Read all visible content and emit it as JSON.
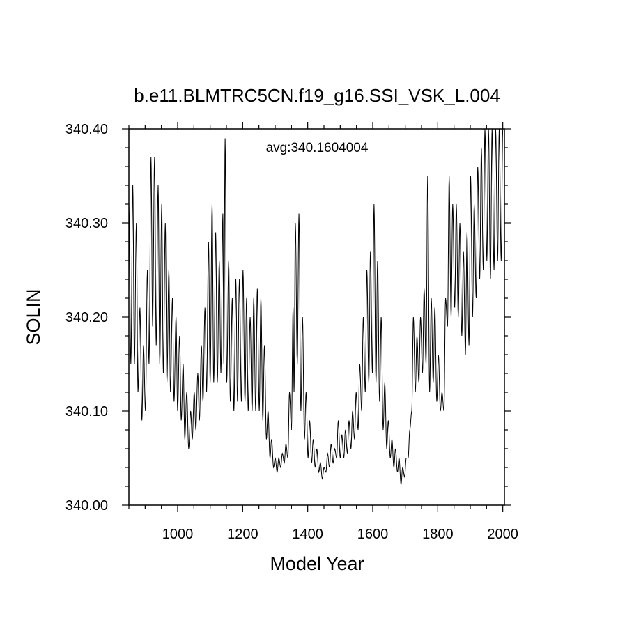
{
  "chart_data": {
    "type": "line",
    "title": "b.e11.BLMTRC5CN.f19_g16.SSI_VSK_L.004",
    "xlabel": "Model Year",
    "ylabel": "SOLIN",
    "annotation": "avg:340.1604004",
    "xlim": [
      850,
      2005
    ],
    "ylim": [
      340.0,
      340.4
    ],
    "x_ticks": [
      1000,
      1200,
      1400,
      1600,
      1800,
      2000
    ],
    "x_tick_labels": [
      "1000",
      "1200",
      "1400",
      "1600",
      "1800",
      "2000"
    ],
    "y_ticks": [
      340.0,
      340.1,
      340.2,
      340.3,
      340.4
    ],
    "y_tick_labels": [
      "340.00",
      "340.10",
      "340.20",
      "340.30",
      "340.40"
    ],
    "grid": false,
    "series": [
      {
        "line_color": "#000000",
        "oscillation_period_years": 11,
        "peaks": [
          {
            "x": 850,
            "y": 340.32
          },
          {
            "x": 862,
            "y": 340.34
          },
          {
            "x": 873,
            "y": 340.3
          },
          {
            "x": 884,
            "y": 340.21
          },
          {
            "x": 895,
            "y": 340.17
          },
          {
            "x": 907,
            "y": 340.25
          },
          {
            "x": 918,
            "y": 340.37
          },
          {
            "x": 929,
            "y": 340.37
          },
          {
            "x": 940,
            "y": 340.34
          },
          {
            "x": 951,
            "y": 340.32
          },
          {
            "x": 962,
            "y": 340.3
          },
          {
            "x": 973,
            "y": 340.25
          },
          {
            "x": 984,
            "y": 340.22
          },
          {
            "x": 995,
            "y": 340.2
          },
          {
            "x": 1006,
            "y": 340.18
          },
          {
            "x": 1017,
            "y": 340.15
          },
          {
            "x": 1028,
            "y": 340.12
          },
          {
            "x": 1040,
            "y": 340.1
          },
          {
            "x": 1051,
            "y": 340.12
          },
          {
            "x": 1062,
            "y": 340.14
          },
          {
            "x": 1073,
            "y": 340.17
          },
          {
            "x": 1084,
            "y": 340.21
          },
          {
            "x": 1095,
            "y": 340.28
          },
          {
            "x": 1106,
            "y": 340.32
          },
          {
            "x": 1117,
            "y": 340.29
          },
          {
            "x": 1128,
            "y": 340.26
          },
          {
            "x": 1139,
            "y": 340.31
          },
          {
            "x": 1146,
            "y": 340.39
          },
          {
            "x": 1157,
            "y": 340.26
          },
          {
            "x": 1168,
            "y": 340.22
          },
          {
            "x": 1179,
            "y": 340.24
          },
          {
            "x": 1190,
            "y": 340.24
          },
          {
            "x": 1201,
            "y": 340.25
          },
          {
            "x": 1212,
            "y": 340.22
          },
          {
            "x": 1223,
            "y": 340.2
          },
          {
            "x": 1234,
            "y": 340.22
          },
          {
            "x": 1245,
            "y": 340.23
          },
          {
            "x": 1256,
            "y": 340.22
          },
          {
            "x": 1267,
            "y": 340.17
          },
          {
            "x": 1278,
            "y": 340.1
          },
          {
            "x": 1289,
            "y": 340.07
          },
          {
            "x": 1300,
            "y": 340.05
          },
          {
            "x": 1311,
            "y": 340.05
          },
          {
            "x": 1322,
            "y": 340.055
          },
          {
            "x": 1333,
            "y": 340.065
          },
          {
            "x": 1344,
            "y": 340.12
          },
          {
            "x": 1355,
            "y": 340.21
          },
          {
            "x": 1362,
            "y": 340.3
          },
          {
            "x": 1373,
            "y": 340.31
          },
          {
            "x": 1384,
            "y": 340.2
          },
          {
            "x": 1395,
            "y": 340.12
          },
          {
            "x": 1406,
            "y": 340.09
          },
          {
            "x": 1417,
            "y": 340.07
          },
          {
            "x": 1428,
            "y": 340.06
          },
          {
            "x": 1439,
            "y": 340.045
          },
          {
            "x": 1450,
            "y": 340.04
          },
          {
            "x": 1461,
            "y": 340.055
          },
          {
            "x": 1472,
            "y": 340.065
          },
          {
            "x": 1483,
            "y": 340.06
          },
          {
            "x": 1494,
            "y": 340.09
          },
          {
            "x": 1505,
            "y": 340.075
          },
          {
            "x": 1516,
            "y": 340.08
          },
          {
            "x": 1527,
            "y": 340.09
          },
          {
            "x": 1538,
            "y": 340.1
          },
          {
            "x": 1549,
            "y": 340.12
          },
          {
            "x": 1560,
            "y": 340.15
          },
          {
            "x": 1571,
            "y": 340.2
          },
          {
            "x": 1582,
            "y": 340.25
          },
          {
            "x": 1593,
            "y": 340.27
          },
          {
            "x": 1604,
            "y": 340.32
          },
          {
            "x": 1615,
            "y": 340.26
          },
          {
            "x": 1626,
            "y": 340.2
          },
          {
            "x": 1637,
            "y": 340.13
          },
          {
            "x": 1648,
            "y": 340.09
          },
          {
            "x": 1659,
            "y": 340.07
          },
          {
            "x": 1670,
            "y": 340.06
          },
          {
            "x": 1681,
            "y": 340.05
          },
          {
            "x": 1692,
            "y": 340.04
          },
          {
            "x": 1703,
            "y": 340.05
          },
          {
            "x": 1714,
            "y": 340.08
          },
          {
            "x": 1725,
            "y": 340.2
          },
          {
            "x": 1736,
            "y": 340.18
          },
          {
            "x": 1747,
            "y": 340.2
          },
          {
            "x": 1758,
            "y": 340.23
          },
          {
            "x": 1769,
            "y": 340.35
          },
          {
            "x": 1780,
            "y": 340.22
          },
          {
            "x": 1791,
            "y": 340.21
          },
          {
            "x": 1802,
            "y": 340.16
          },
          {
            "x": 1813,
            "y": 340.12
          },
          {
            "x": 1824,
            "y": 340.22
          },
          {
            "x": 1835,
            "y": 340.35
          },
          {
            "x": 1846,
            "y": 340.32
          },
          {
            "x": 1857,
            "y": 340.32
          },
          {
            "x": 1868,
            "y": 340.3
          },
          {
            "x": 1879,
            "y": 340.27
          },
          {
            "x": 1890,
            "y": 340.29
          },
          {
            "x": 1901,
            "y": 340.35
          },
          {
            "x": 1912,
            "y": 340.32
          },
          {
            "x": 1923,
            "y": 340.36
          },
          {
            "x": 1934,
            "y": 340.38
          },
          {
            "x": 1945,
            "y": 340.4
          },
          {
            "x": 1956,
            "y": 340.4
          },
          {
            "x": 1967,
            "y": 340.4
          },
          {
            "x": 1978,
            "y": 340.4
          },
          {
            "x": 1989,
            "y": 340.4
          },
          {
            "x": 2000,
            "y": 340.4
          }
        ],
        "troughs": [
          {
            "x": 856,
            "y": 340.15
          },
          {
            "x": 867,
            "y": 340.15
          },
          {
            "x": 878,
            "y": 340.12
          },
          {
            "x": 890,
            "y": 340.09
          },
          {
            "x": 901,
            "y": 340.1
          },
          {
            "x": 912,
            "y": 340.15
          },
          {
            "x": 923,
            "y": 340.19
          },
          {
            "x": 934,
            "y": 340.17
          },
          {
            "x": 945,
            "y": 340.15
          },
          {
            "x": 956,
            "y": 340.14
          },
          {
            "x": 967,
            "y": 340.13
          },
          {
            "x": 978,
            "y": 340.12
          },
          {
            "x": 989,
            "y": 340.11
          },
          {
            "x": 1000,
            "y": 340.1
          },
          {
            "x": 1011,
            "y": 340.09
          },
          {
            "x": 1022,
            "y": 340.07
          },
          {
            "x": 1034,
            "y": 340.06
          },
          {
            "x": 1045,
            "y": 340.07
          },
          {
            "x": 1056,
            "y": 340.08
          },
          {
            "x": 1067,
            "y": 340.09
          },
          {
            "x": 1078,
            "y": 340.11
          },
          {
            "x": 1089,
            "y": 340.12
          },
          {
            "x": 1100,
            "y": 340.13
          },
          {
            "x": 1111,
            "y": 340.13
          },
          {
            "x": 1122,
            "y": 340.13
          },
          {
            "x": 1133,
            "y": 340.14
          },
          {
            "x": 1142,
            "y": 340.15
          },
          {
            "x": 1151,
            "y": 340.13
          },
          {
            "x": 1162,
            "y": 340.11
          },
          {
            "x": 1173,
            "y": 340.1
          },
          {
            "x": 1184,
            "y": 340.11
          },
          {
            "x": 1196,
            "y": 340.11
          },
          {
            "x": 1207,
            "y": 340.11
          },
          {
            "x": 1217,
            "y": 340.1
          },
          {
            "x": 1229,
            "y": 340.1
          },
          {
            "x": 1240,
            "y": 340.1
          },
          {
            "x": 1251,
            "y": 340.1
          },
          {
            "x": 1262,
            "y": 340.09
          },
          {
            "x": 1273,
            "y": 340.07
          },
          {
            "x": 1284,
            "y": 340.05
          },
          {
            "x": 1295,
            "y": 340.04
          },
          {
            "x": 1306,
            "y": 340.035
          },
          {
            "x": 1317,
            "y": 340.04
          },
          {
            "x": 1328,
            "y": 340.045
          },
          {
            "x": 1339,
            "y": 340.05
          },
          {
            "x": 1350,
            "y": 340.08
          },
          {
            "x": 1358,
            "y": 340.12
          },
          {
            "x": 1368,
            "y": 340.15
          },
          {
            "x": 1379,
            "y": 340.1
          },
          {
            "x": 1390,
            "y": 340.07
          },
          {
            "x": 1401,
            "y": 340.05
          },
          {
            "x": 1412,
            "y": 340.045
          },
          {
            "x": 1423,
            "y": 340.04
          },
          {
            "x": 1434,
            "y": 340.035
          },
          {
            "x": 1445,
            "y": 340.028
          },
          {
            "x": 1456,
            "y": 340.035
          },
          {
            "x": 1467,
            "y": 340.04
          },
          {
            "x": 1478,
            "y": 340.045
          },
          {
            "x": 1489,
            "y": 340.05
          },
          {
            "x": 1500,
            "y": 340.05
          },
          {
            "x": 1511,
            "y": 340.05
          },
          {
            "x": 1522,
            "y": 340.055
          },
          {
            "x": 1533,
            "y": 340.06
          },
          {
            "x": 1544,
            "y": 340.07
          },
          {
            "x": 1555,
            "y": 340.08
          },
          {
            "x": 1566,
            "y": 340.1
          },
          {
            "x": 1577,
            "y": 340.12
          },
          {
            "x": 1588,
            "y": 340.13
          },
          {
            "x": 1599,
            "y": 340.14
          },
          {
            "x": 1610,
            "y": 340.13
          },
          {
            "x": 1621,
            "y": 340.11
          },
          {
            "x": 1632,
            "y": 340.08
          },
          {
            "x": 1643,
            "y": 340.06
          },
          {
            "x": 1654,
            "y": 340.05
          },
          {
            "x": 1665,
            "y": 340.04
          },
          {
            "x": 1676,
            "y": 340.035
          },
          {
            "x": 1687,
            "y": 340.022
          },
          {
            "x": 1698,
            "y": 340.03
          },
          {
            "x": 1709,
            "y": 340.05
          },
          {
            "x": 1720,
            "y": 340.1
          },
          {
            "x": 1731,
            "y": 340.12
          },
          {
            "x": 1742,
            "y": 340.13
          },
          {
            "x": 1753,
            "y": 340.14
          },
          {
            "x": 1764,
            "y": 340.15
          },
          {
            "x": 1775,
            "y": 340.12
          },
          {
            "x": 1786,
            "y": 340.13
          },
          {
            "x": 1797,
            "y": 340.11
          },
          {
            "x": 1808,
            "y": 340.1
          },
          {
            "x": 1819,
            "y": 340.1
          },
          {
            "x": 1830,
            "y": 340.19
          },
          {
            "x": 1841,
            "y": 340.2
          },
          {
            "x": 1852,
            "y": 340.21
          },
          {
            "x": 1863,
            "y": 340.2
          },
          {
            "x": 1874,
            "y": 340.18
          },
          {
            "x": 1885,
            "y": 340.16
          },
          {
            "x": 1896,
            "y": 340.17
          },
          {
            "x": 1907,
            "y": 340.2
          },
          {
            "x": 1918,
            "y": 340.22
          },
          {
            "x": 1929,
            "y": 340.24
          },
          {
            "x": 1940,
            "y": 340.25
          },
          {
            "x": 1951,
            "y": 340.26
          },
          {
            "x": 1962,
            "y": 340.24
          },
          {
            "x": 1973,
            "y": 340.25
          },
          {
            "x": 1984,
            "y": 340.26
          },
          {
            "x": 1995,
            "y": 340.26
          }
        ]
      }
    ]
  }
}
